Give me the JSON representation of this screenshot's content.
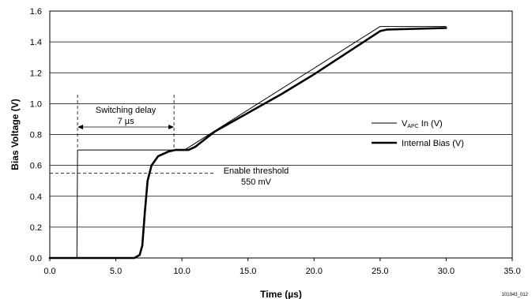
{
  "chart_data": {
    "type": "line",
    "xlabel": "Time (µs)",
    "ylabel": "Bias Voltage (V)",
    "xlim": [
      0,
      35
    ],
    "ylim": [
      0,
      1.6
    ],
    "x_ticks": [
      "0.0",
      "5.0",
      "10.0",
      "15.0",
      "20.0",
      "25.0",
      "30.0",
      "35.0"
    ],
    "y_ticks": [
      "0.0",
      "0.2",
      "0.4",
      "0.6",
      "0.8",
      "1.0",
      "1.2",
      "1.4",
      "1.6"
    ],
    "grid": "horizontal",
    "legend_position": "right",
    "series": [
      {
        "name": "VAPC In (V)",
        "name_main": "V",
        "name_sub": "APC",
        "name_rest": " In (V)",
        "color": "#000000",
        "line_width": 1,
        "points": [
          [
            0,
            0
          ],
          [
            2.05,
            0
          ],
          [
            2.1,
            0.7
          ],
          [
            10.2,
            0.7
          ],
          [
            25.0,
            1.5
          ],
          [
            30.0,
            1.5
          ]
        ]
      },
      {
        "name": "Internal Bias (V)",
        "color": "#000000",
        "line_width": 2.6,
        "points": [
          [
            0,
            0
          ],
          [
            6.4,
            0
          ],
          [
            6.8,
            0.02
          ],
          [
            7.0,
            0.08
          ],
          [
            7.2,
            0.3
          ],
          [
            7.4,
            0.5
          ],
          [
            7.7,
            0.6
          ],
          [
            8.2,
            0.66
          ],
          [
            9.0,
            0.69
          ],
          [
            9.5,
            0.7
          ],
          [
            10.5,
            0.7
          ],
          [
            11.0,
            0.72
          ],
          [
            12.5,
            0.82
          ],
          [
            15.0,
            0.94
          ],
          [
            17.5,
            1.06
          ],
          [
            20.0,
            1.19
          ],
          [
            22.5,
            1.33
          ],
          [
            25.0,
            1.47
          ],
          [
            25.5,
            1.48
          ],
          [
            30.0,
            1.49
          ]
        ]
      }
    ],
    "annotations": {
      "switching_delay": {
        "label_line1": "Switching delay",
        "label_line2": "7 µs",
        "x_start": 2.1,
        "x_end": 9.4
      },
      "enable_threshold": {
        "label_line1": "Enable threshold",
        "label_line2": "550 mV",
        "y": 0.55
      }
    }
  },
  "figure_id": "101943_012"
}
